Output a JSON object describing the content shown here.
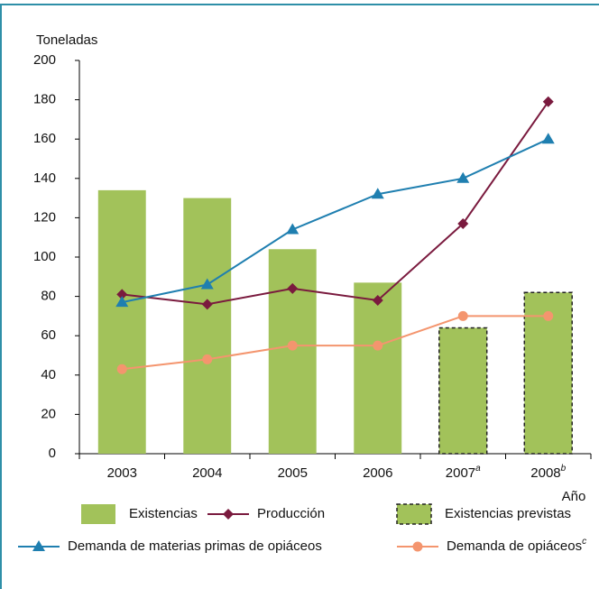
{
  "chart_data": {
    "type": "bar",
    "y_label": "Toneladas",
    "x_label": "Año",
    "categories": [
      "2003",
      "2004",
      "2005",
      "2006",
      "2007",
      "2008"
    ],
    "category_superscripts": [
      null,
      null,
      null,
      null,
      "a",
      "b"
    ],
    "ylim": [
      0,
      200
    ],
    "yticks": [
      0,
      20,
      40,
      60,
      80,
      100,
      120,
      140,
      160,
      180,
      200
    ],
    "series": [
      {
        "name": "Existencias",
        "type": "bar",
        "color": "#a2c25a",
        "values": [
          134,
          130,
          104,
          87,
          null,
          null
        ]
      },
      {
        "name": "Producción",
        "type": "line",
        "marker": "diamond",
        "color": "#7a1a3e",
        "values": [
          81,
          76,
          84,
          78,
          117,
          179
        ]
      },
      {
        "name": "Existencias previstas",
        "type": "bar",
        "border": "dashed",
        "color": "#a2c25a",
        "values": [
          null,
          null,
          null,
          null,
          64,
          82
        ]
      },
      {
        "name": "Demanda de materias primas de opiáceos",
        "type": "line",
        "marker": "triangle",
        "color": "#1f7fb0",
        "values": [
          77,
          86,
          114,
          132,
          140,
          160
        ]
      },
      {
        "name": "Demanda de opiáceos",
        "name_superscript": "c",
        "type": "line",
        "marker": "circle",
        "color": "#f4956e",
        "values": [
          43,
          48,
          55,
          55,
          70,
          70
        ]
      }
    ]
  }
}
